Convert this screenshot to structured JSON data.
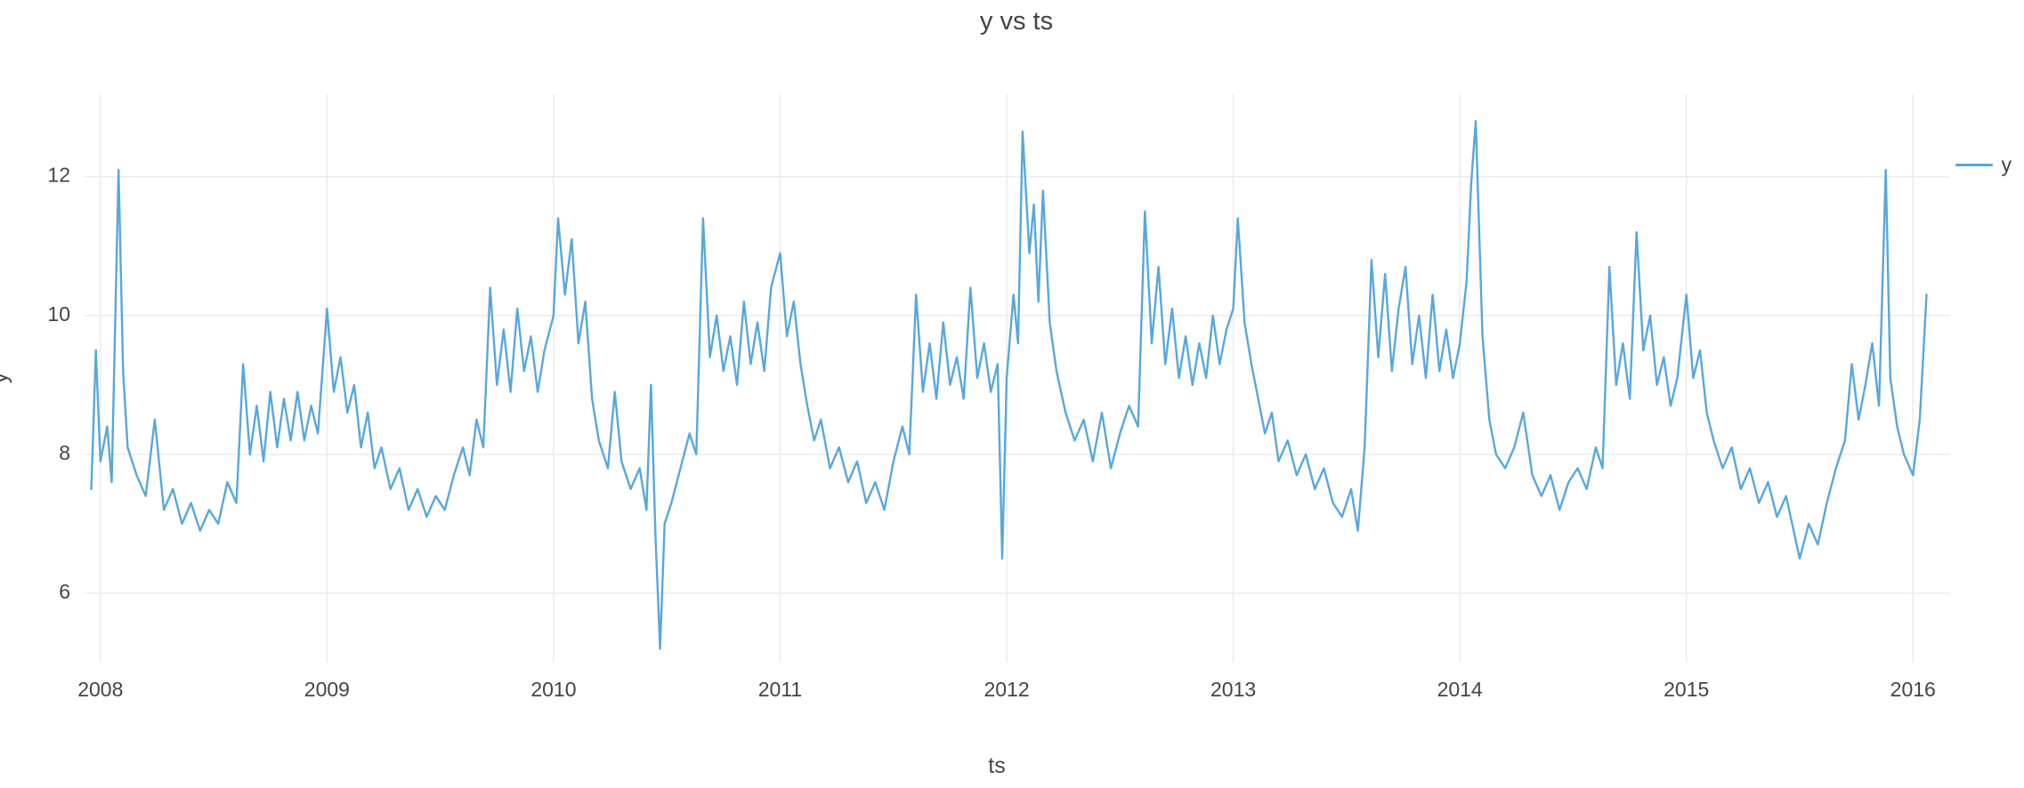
{
  "title": "y vs ts",
  "colors": {
    "line": "#58A7DC",
    "grid": "#EBEBEB",
    "text": "#444444",
    "background": "#FFFFFF"
  },
  "legend": {
    "entries": [
      {
        "label": "y",
        "color": "#58A7DC"
      }
    ]
  },
  "chart_data": {
    "type": "line",
    "title": "y vs ts",
    "xlabel": "ts",
    "ylabel": "y",
    "grid": true,
    "legend_position": "right",
    "x_ticks": [
      2008,
      2009,
      2010,
      2011,
      2012,
      2013,
      2014,
      2015,
      2016
    ],
    "y_ticks": [
      6,
      8,
      10,
      12
    ],
    "xlim": [
      2007.93,
      2016.16
    ],
    "ylim": [
      5.0,
      13.2
    ],
    "series": [
      {
        "name": "y",
        "color": "#58A7DC",
        "points": [
          [
            2007.96,
            7.5
          ],
          [
            2007.98,
            9.5
          ],
          [
            2008.0,
            7.9
          ],
          [
            2008.03,
            8.4
          ],
          [
            2008.05,
            7.6
          ],
          [
            2008.08,
            12.1
          ],
          [
            2008.1,
            9.2
          ],
          [
            2008.12,
            8.1
          ],
          [
            2008.16,
            7.7
          ],
          [
            2008.2,
            7.4
          ],
          [
            2008.24,
            8.5
          ],
          [
            2008.28,
            7.2
          ],
          [
            2008.32,
            7.5
          ],
          [
            2008.36,
            7.0
          ],
          [
            2008.4,
            7.3
          ],
          [
            2008.44,
            6.9
          ],
          [
            2008.48,
            7.2
          ],
          [
            2008.52,
            7.0
          ],
          [
            2008.56,
            7.6
          ],
          [
            2008.6,
            7.3
          ],
          [
            2008.63,
            9.3
          ],
          [
            2008.66,
            8.0
          ],
          [
            2008.69,
            8.7
          ],
          [
            2008.72,
            7.9
          ],
          [
            2008.75,
            8.9
          ],
          [
            2008.78,
            8.1
          ],
          [
            2008.81,
            8.8
          ],
          [
            2008.84,
            8.2
          ],
          [
            2008.87,
            8.9
          ],
          [
            2008.9,
            8.2
          ],
          [
            2008.93,
            8.7
          ],
          [
            2008.96,
            8.3
          ],
          [
            2009.0,
            10.1
          ],
          [
            2009.03,
            8.9
          ],
          [
            2009.06,
            9.4
          ],
          [
            2009.09,
            8.6
          ],
          [
            2009.12,
            9.0
          ],
          [
            2009.15,
            8.1
          ],
          [
            2009.18,
            8.6
          ],
          [
            2009.21,
            7.8
          ],
          [
            2009.24,
            8.1
          ],
          [
            2009.28,
            7.5
          ],
          [
            2009.32,
            7.8
          ],
          [
            2009.36,
            7.2
          ],
          [
            2009.4,
            7.5
          ],
          [
            2009.44,
            7.1
          ],
          [
            2009.48,
            7.4
          ],
          [
            2009.52,
            7.2
          ],
          [
            2009.56,
            7.7
          ],
          [
            2009.6,
            8.1
          ],
          [
            2009.63,
            7.7
          ],
          [
            2009.66,
            8.5
          ],
          [
            2009.69,
            8.1
          ],
          [
            2009.72,
            10.4
          ],
          [
            2009.75,
            9.0
          ],
          [
            2009.78,
            9.8
          ],
          [
            2009.81,
            8.9
          ],
          [
            2009.84,
            10.1
          ],
          [
            2009.87,
            9.2
          ],
          [
            2009.9,
            9.7
          ],
          [
            2009.93,
            8.9
          ],
          [
            2009.96,
            9.5
          ],
          [
            2010.0,
            10.0
          ],
          [
            2010.02,
            11.4
          ],
          [
            2010.05,
            10.3
          ],
          [
            2010.08,
            11.1
          ],
          [
            2010.11,
            9.6
          ],
          [
            2010.14,
            10.2
          ],
          [
            2010.17,
            8.8
          ],
          [
            2010.2,
            8.2
          ],
          [
            2010.24,
            7.8
          ],
          [
            2010.27,
            8.9
          ],
          [
            2010.3,
            7.9
          ],
          [
            2010.34,
            7.5
          ],
          [
            2010.38,
            7.8
          ],
          [
            2010.41,
            7.2
          ],
          [
            2010.43,
            9.0
          ],
          [
            2010.45,
            6.8
          ],
          [
            2010.47,
            5.2
          ],
          [
            2010.49,
            7.0
          ],
          [
            2010.52,
            7.3
          ],
          [
            2010.56,
            7.8
          ],
          [
            2010.6,
            8.3
          ],
          [
            2010.63,
            8.0
          ],
          [
            2010.66,
            11.4
          ],
          [
            2010.69,
            9.4
          ],
          [
            2010.72,
            10.0
          ],
          [
            2010.75,
            9.2
          ],
          [
            2010.78,
            9.7
          ],
          [
            2010.81,
            9.0
          ],
          [
            2010.84,
            10.2
          ],
          [
            2010.87,
            9.3
          ],
          [
            2010.9,
            9.9
          ],
          [
            2010.93,
            9.2
          ],
          [
            2010.96,
            10.4
          ],
          [
            2011.0,
            10.9
          ],
          [
            2011.03,
            9.7
          ],
          [
            2011.06,
            10.2
          ],
          [
            2011.09,
            9.3
          ],
          [
            2011.12,
            8.7
          ],
          [
            2011.15,
            8.2
          ],
          [
            2011.18,
            8.5
          ],
          [
            2011.22,
            7.8
          ],
          [
            2011.26,
            8.1
          ],
          [
            2011.3,
            7.6
          ],
          [
            2011.34,
            7.9
          ],
          [
            2011.38,
            7.3
          ],
          [
            2011.42,
            7.6
          ],
          [
            2011.46,
            7.2
          ],
          [
            2011.5,
            7.9
          ],
          [
            2011.54,
            8.4
          ],
          [
            2011.57,
            8.0
          ],
          [
            2011.6,
            10.3
          ],
          [
            2011.63,
            8.9
          ],
          [
            2011.66,
            9.6
          ],
          [
            2011.69,
            8.8
          ],
          [
            2011.72,
            9.9
          ],
          [
            2011.75,
            9.0
          ],
          [
            2011.78,
            9.4
          ],
          [
            2011.81,
            8.8
          ],
          [
            2011.84,
            10.4
          ],
          [
            2011.87,
            9.1
          ],
          [
            2011.9,
            9.6
          ],
          [
            2011.93,
            8.9
          ],
          [
            2011.96,
            9.3
          ],
          [
            2011.98,
            6.5
          ],
          [
            2012.0,
            9.1
          ],
          [
            2012.03,
            10.3
          ],
          [
            2012.05,
            9.6
          ],
          [
            2012.07,
            12.65
          ],
          [
            2012.1,
            10.9
          ],
          [
            2012.12,
            11.6
          ],
          [
            2012.14,
            10.2
          ],
          [
            2012.16,
            11.8
          ],
          [
            2012.19,
            9.9
          ],
          [
            2012.22,
            9.2
          ],
          [
            2012.26,
            8.6
          ],
          [
            2012.3,
            8.2
          ],
          [
            2012.34,
            8.5
          ],
          [
            2012.38,
            7.9
          ],
          [
            2012.42,
            8.6
          ],
          [
            2012.46,
            7.8
          ],
          [
            2012.5,
            8.3
          ],
          [
            2012.54,
            8.7
          ],
          [
            2012.58,
            8.4
          ],
          [
            2012.61,
            11.5
          ],
          [
            2012.64,
            9.6
          ],
          [
            2012.67,
            10.7
          ],
          [
            2012.7,
            9.3
          ],
          [
            2012.73,
            10.1
          ],
          [
            2012.76,
            9.1
          ],
          [
            2012.79,
            9.7
          ],
          [
            2012.82,
            9.0
          ],
          [
            2012.85,
            9.6
          ],
          [
            2012.88,
            9.1
          ],
          [
            2012.91,
            10.0
          ],
          [
            2012.94,
            9.3
          ],
          [
            2012.97,
            9.8
          ],
          [
            2013.0,
            10.1
          ],
          [
            2013.02,
            11.4
          ],
          [
            2013.05,
            9.9
          ],
          [
            2013.08,
            9.3
          ],
          [
            2013.11,
            8.8
          ],
          [
            2013.14,
            8.3
          ],
          [
            2013.17,
            8.6
          ],
          [
            2013.2,
            7.9
          ],
          [
            2013.24,
            8.2
          ],
          [
            2013.28,
            7.7
          ],
          [
            2013.32,
            8.0
          ],
          [
            2013.36,
            7.5
          ],
          [
            2013.4,
            7.8
          ],
          [
            2013.44,
            7.3
          ],
          [
            2013.48,
            7.1
          ],
          [
            2013.52,
            7.5
          ],
          [
            2013.55,
            6.9
          ],
          [
            2013.58,
            8.1
          ],
          [
            2013.61,
            10.8
          ],
          [
            2013.64,
            9.4
          ],
          [
            2013.67,
            10.6
          ],
          [
            2013.7,
            9.2
          ],
          [
            2013.73,
            10.1
          ],
          [
            2013.76,
            10.7
          ],
          [
            2013.79,
            9.3
          ],
          [
            2013.82,
            10.0
          ],
          [
            2013.85,
            9.1
          ],
          [
            2013.88,
            10.3
          ],
          [
            2013.91,
            9.2
          ],
          [
            2013.94,
            9.8
          ],
          [
            2013.97,
            9.1
          ],
          [
            2014.0,
            9.6
          ],
          [
            2014.03,
            10.5
          ],
          [
            2014.05,
            11.9
          ],
          [
            2014.07,
            12.8
          ],
          [
            2014.1,
            9.7
          ],
          [
            2014.13,
            8.5
          ],
          [
            2014.16,
            8.0
          ],
          [
            2014.2,
            7.8
          ],
          [
            2014.24,
            8.1
          ],
          [
            2014.28,
            8.6
          ],
          [
            2014.32,
            7.7
          ],
          [
            2014.36,
            7.4
          ],
          [
            2014.4,
            7.7
          ],
          [
            2014.44,
            7.2
          ],
          [
            2014.48,
            7.6
          ],
          [
            2014.52,
            7.8
          ],
          [
            2014.56,
            7.5
          ],
          [
            2014.6,
            8.1
          ],
          [
            2014.63,
            7.8
          ],
          [
            2014.66,
            10.7
          ],
          [
            2014.69,
            9.0
          ],
          [
            2014.72,
            9.6
          ],
          [
            2014.75,
            8.8
          ],
          [
            2014.78,
            11.2
          ],
          [
            2014.81,
            9.5
          ],
          [
            2014.84,
            10.0
          ],
          [
            2014.87,
            9.0
          ],
          [
            2014.9,
            9.4
          ],
          [
            2014.93,
            8.7
          ],
          [
            2014.96,
            9.1
          ],
          [
            2015.0,
            10.3
          ],
          [
            2015.03,
            9.1
          ],
          [
            2015.06,
            9.5
          ],
          [
            2015.09,
            8.6
          ],
          [
            2015.12,
            8.2
          ],
          [
            2015.16,
            7.8
          ],
          [
            2015.2,
            8.1
          ],
          [
            2015.24,
            7.5
          ],
          [
            2015.28,
            7.8
          ],
          [
            2015.32,
            7.3
          ],
          [
            2015.36,
            7.6
          ],
          [
            2015.4,
            7.1
          ],
          [
            2015.44,
            7.4
          ],
          [
            2015.48,
            6.8
          ],
          [
            2015.5,
            6.5
          ],
          [
            2015.54,
            7.0
          ],
          [
            2015.58,
            6.7
          ],
          [
            2015.62,
            7.3
          ],
          [
            2015.66,
            7.8
          ],
          [
            2015.7,
            8.2
          ],
          [
            2015.73,
            9.3
          ],
          [
            2015.76,
            8.5
          ],
          [
            2015.79,
            9.0
          ],
          [
            2015.82,
            9.6
          ],
          [
            2015.85,
            8.7
          ],
          [
            2015.88,
            12.1
          ],
          [
            2015.9,
            9.1
          ],
          [
            2015.93,
            8.4
          ],
          [
            2015.96,
            8.0
          ],
          [
            2016.0,
            7.7
          ],
          [
            2016.03,
            8.5
          ],
          [
            2016.06,
            10.3
          ]
        ]
      }
    ]
  }
}
